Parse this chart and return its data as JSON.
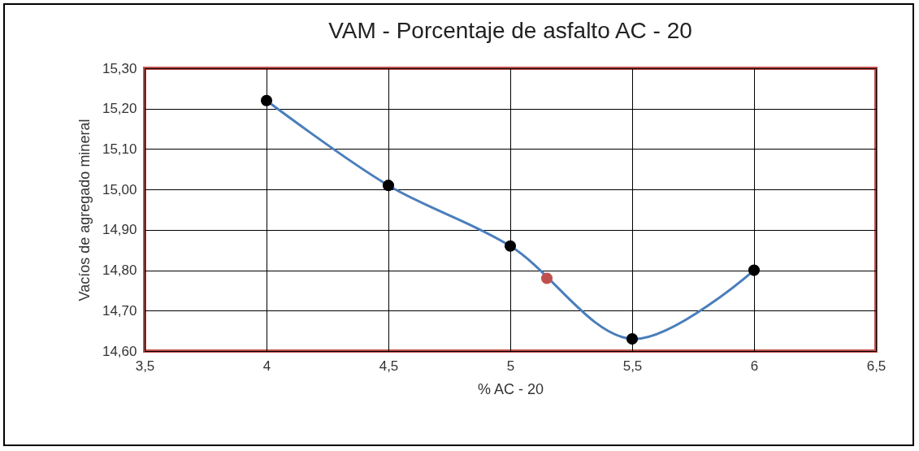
{
  "chart_data": {
    "type": "line",
    "title": "VAM - Porcentaje de asfalto AC - 20",
    "xlabel": "% AC - 20",
    "ylabel": "Vacíos de agregado mineral",
    "series": [
      {
        "color": "#4a7ebb",
        "x": [
          4,
          4.5,
          5,
          5.5,
          6
        ],
        "values": [
          15.22,
          15.01,
          14.86,
          14.63,
          14.8
        ]
      },
      {
        "type": "scatter",
        "color": "#c0504d",
        "x": [
          5.15
        ],
        "values": [
          14.78
        ]
      }
    ],
    "xlim": [
      3.5,
      6.5
    ],
    "xticks": [
      {
        "value": 3.5,
        "label": "3,5"
      },
      4,
      {
        "value": 4.5,
        "label": "4,5"
      },
      5,
      {
        "value": 5.5,
        "label": "5,5"
      },
      6,
      {
        "value": 6.5,
        "label": "6,5"
      }
    ],
    "ylim": [
      14.6,
      15.3
    ],
    "yticks": [
      {
        "value": 14.6,
        "label": "14,60"
      },
      {
        "value": 14.7,
        "label": "14,70"
      },
      {
        "value": 14.8,
        "label": "14,80"
      },
      {
        "value": 14.9,
        "label": "14,90"
      },
      {
        "value": 15.0,
        "label": "15,00"
      },
      {
        "value": 15.1,
        "label": "15,10"
      },
      {
        "value": 15.2,
        "label": "15,20"
      },
      {
        "value": 15.3,
        "label": "15,30"
      }
    ],
    "grid": true,
    "marker": "circle"
  }
}
